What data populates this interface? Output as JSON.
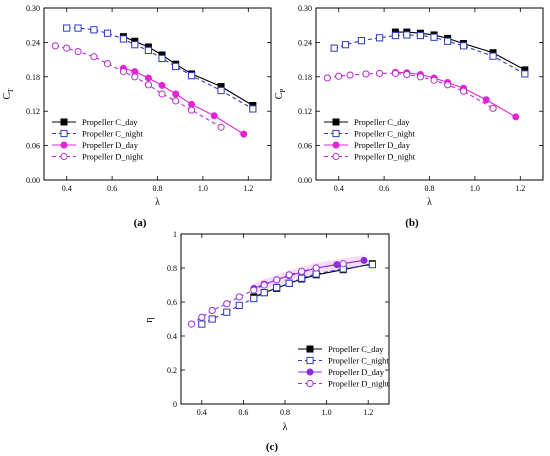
{
  "chart_data": [
    {
      "type": "line",
      "caption": "(a)",
      "xlabel": "λ",
      "ylabel": "C",
      "ylabel_sub": "T",
      "xlim": [
        0.3,
        1.3
      ],
      "ylim": [
        0.0,
        0.3
      ],
      "xticks": [
        "0.4",
        "0.6",
        "0.8",
        "1.0",
        "1.2"
      ],
      "yticks": [
        "0.00",
        "0.06",
        "0.12",
        "0.18",
        "0.24",
        "0.30"
      ],
      "legend_position": "bottom-left",
      "series": [
        {
          "name": "Propeller C_day",
          "color": "#000000",
          "marker": "square-filled",
          "dash": "solid",
          "x": [
            0.65,
            0.7,
            0.76,
            0.82,
            0.88,
            0.95,
            1.08,
            1.22
          ],
          "y": [
            0.25,
            0.242,
            0.232,
            0.218,
            0.202,
            0.185,
            0.163,
            0.13
          ]
        },
        {
          "name": "Propeller C_night",
          "color": "#2e3bbf",
          "marker": "square-open",
          "dash": "dashed",
          "x": [
            0.4,
            0.45,
            0.52,
            0.58,
            0.65,
            0.7,
            0.76,
            0.82,
            0.88,
            0.95,
            1.08,
            1.22
          ],
          "y": [
            0.265,
            0.265,
            0.262,
            0.256,
            0.246,
            0.236,
            0.226,
            0.212,
            0.198,
            0.182,
            0.156,
            0.124
          ]
        },
        {
          "name": "Propeller D_day",
          "color": "#e323d6",
          "marker": "circle-filled",
          "dash": "solid",
          "x": [
            0.65,
            0.7,
            0.76,
            0.82,
            0.88,
            0.95,
            1.05,
            1.18
          ],
          "y": [
            0.195,
            0.189,
            0.178,
            0.165,
            0.15,
            0.132,
            0.112,
            0.08
          ]
        },
        {
          "name": "Propeller D_night",
          "color": "#b52bd1",
          "marker": "circle-open",
          "dash": "dashed",
          "x": [
            0.35,
            0.4,
            0.45,
            0.52,
            0.58,
            0.65,
            0.7,
            0.76,
            0.82,
            0.88,
            0.95,
            1.08
          ],
          "y": [
            0.234,
            0.23,
            0.224,
            0.215,
            0.203,
            0.189,
            0.18,
            0.166,
            0.15,
            0.138,
            0.122,
            0.092
          ]
        }
      ]
    },
    {
      "type": "line",
      "caption": "(b)",
      "xlabel": "λ",
      "ylabel": "C",
      "ylabel_sub": "P",
      "xlim": [
        0.3,
        1.3
      ],
      "ylim": [
        0.0,
        0.3
      ],
      "xticks": [
        "0.4",
        "0.6",
        "0.8",
        "1.0",
        "1.2"
      ],
      "yticks": [
        "0.00",
        "0.06",
        "0.12",
        "0.18",
        "0.24",
        "0.30"
      ],
      "legend_position": "bottom-left",
      "series": [
        {
          "name": "Propeller C_day",
          "color": "#000000",
          "marker": "square-filled",
          "dash": "solid",
          "x": [
            0.65,
            0.7,
            0.76,
            0.82,
            0.88,
            0.95,
            1.08,
            1.22
          ],
          "y": [
            0.258,
            0.258,
            0.256,
            0.253,
            0.247,
            0.238,
            0.222,
            0.192
          ]
        },
        {
          "name": "Propeller C_night",
          "color": "#2e3bbf",
          "marker": "square-open",
          "dash": "dashed",
          "x": [
            0.38,
            0.43,
            0.5,
            0.58,
            0.65,
            0.7,
            0.76,
            0.82,
            0.88,
            0.95,
            1.08,
            1.22
          ],
          "y": [
            0.23,
            0.236,
            0.243,
            0.248,
            0.252,
            0.253,
            0.252,
            0.249,
            0.242,
            0.234,
            0.216,
            0.185
          ]
        },
        {
          "name": "Propeller D_day",
          "color": "#e323d6",
          "marker": "circle-filled",
          "dash": "solid",
          "x": [
            0.65,
            0.7,
            0.76,
            0.82,
            0.88,
            0.95,
            1.05,
            1.18
          ],
          "y": [
            0.188,
            0.187,
            0.184,
            0.178,
            0.17,
            0.16,
            0.14,
            0.11
          ]
        },
        {
          "name": "Propeller D_night",
          "color": "#b52bd1",
          "marker": "circle-open",
          "dash": "dashed",
          "x": [
            0.35,
            0.4,
            0.45,
            0.52,
            0.58,
            0.65,
            0.7,
            0.76,
            0.82,
            0.88,
            0.95,
            1.08
          ],
          "y": [
            0.178,
            0.181,
            0.183,
            0.185,
            0.186,
            0.186,
            0.184,
            0.18,
            0.174,
            0.166,
            0.155,
            0.125
          ]
        }
      ]
    },
    {
      "type": "line",
      "caption": "(c)",
      "xlabel": "λ",
      "ylabel": "η",
      "ylabel_sub": "",
      "xlim": [
        0.3,
        1.3
      ],
      "ylim": [
        0.0,
        1.0
      ],
      "xticks": [
        "0.4",
        "0.6",
        "0.8",
        "1.0",
        "1.2"
      ],
      "yticks": [
        "0",
        "0.2",
        "0.4",
        "0.6",
        "0.8",
        "1"
      ],
      "legend_position": "bottom-right",
      "series": [
        {
          "name": "Propeller C_day",
          "color": "#000000",
          "marker": "square-filled",
          "dash": "solid",
          "x": [
            0.65,
            0.7,
            0.76,
            0.82,
            0.88,
            0.95,
            1.08,
            1.22
          ],
          "y": [
            0.63,
            0.655,
            0.68,
            0.71,
            0.735,
            0.76,
            0.79,
            0.825
          ]
        },
        {
          "name": "Propeller C_night",
          "color": "#2e3bbf",
          "marker": "square-open",
          "dash": "dashed",
          "x": [
            0.4,
            0.45,
            0.52,
            0.58,
            0.65,
            0.7,
            0.76,
            0.82,
            0.88,
            0.95,
            1.08,
            1.22
          ],
          "y": [
            0.47,
            0.5,
            0.54,
            0.58,
            0.62,
            0.655,
            0.685,
            0.71,
            0.74,
            0.765,
            0.795,
            0.82
          ]
        },
        {
          "name": "Propeller D_day",
          "color": "#8a2be2",
          "marker": "circle-filled",
          "dash": "solid",
          "x": [
            0.65,
            0.7,
            0.76,
            0.82,
            0.88,
            0.95,
            1.05,
            1.18
          ],
          "y": [
            0.68,
            0.705,
            0.73,
            0.755,
            0.775,
            0.8,
            0.82,
            0.845
          ]
        },
        {
          "name": "Propeller D_night",
          "color": "#9b30d9",
          "marker": "circle-open",
          "dash": "dashed",
          "x": [
            0.35,
            0.4,
            0.45,
            0.52,
            0.58,
            0.65,
            0.7,
            0.76,
            0.82,
            0.88,
            0.95,
            1.08
          ],
          "y": [
            0.47,
            0.51,
            0.55,
            0.59,
            0.63,
            0.67,
            0.7,
            0.73,
            0.76,
            0.78,
            0.8,
            0.825
          ]
        }
      ]
    }
  ]
}
